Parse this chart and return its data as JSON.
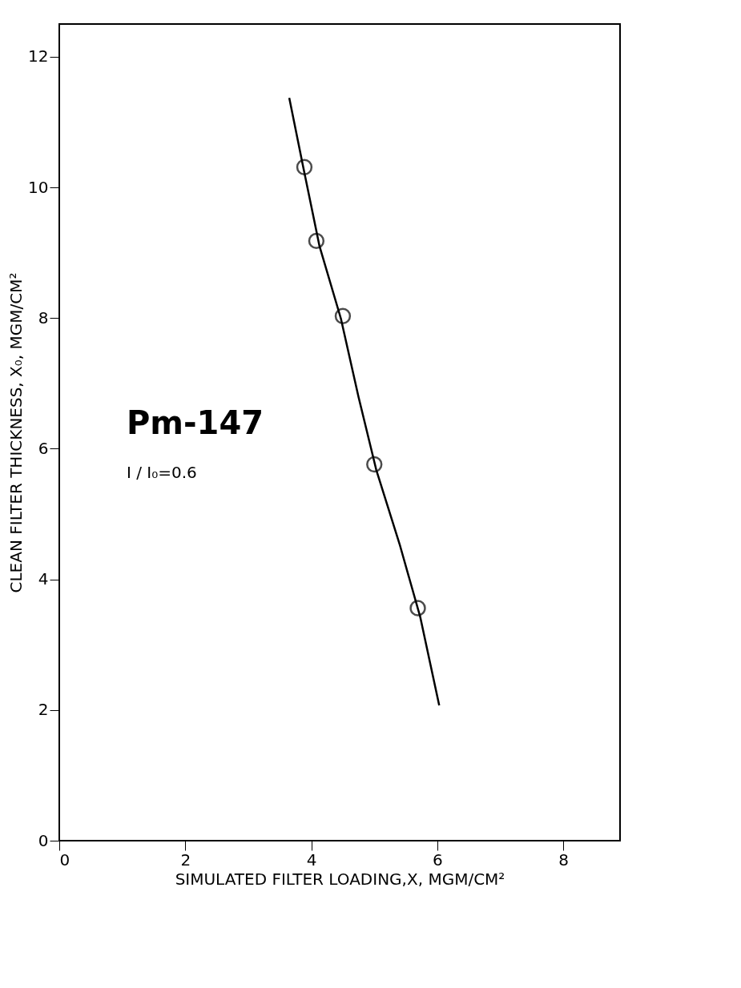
{
  "chart_data": {
    "type": "scatter",
    "xlabel": "SIMULATED FILTER LOADING,X, MGM/CM²",
    "ylabel": "CLEAN FILTER THICKNESS, X₀, MGM/CM²",
    "annotations": [
      "Pm-147",
      "I / I₀=0.6"
    ],
    "xlim": [
      0,
      8.9
    ],
    "xticks": [
      0,
      2,
      4,
      6,
      8
    ],
    "ylim": [
      0,
      12.5
    ],
    "yticks": [
      0,
      2,
      4,
      6,
      8,
      10,
      12
    ],
    "grid": false,
    "marker": "circle",
    "series": [
      {
        "color": "#000000",
        "x": [
          3.89,
          4.08,
          4.5,
          5.0,
          5.69
        ],
        "values": [
          10.31,
          9.18,
          8.03,
          5.76,
          3.56
        ]
      },
      {
        "type": "line",
        "color": "#000000",
        "marker": "none",
        "line_style": "solid",
        "x": [
          3.65,
          3.87,
          4.13,
          4.47,
          4.75,
          5.03,
          5.41,
          5.73,
          6.03
        ],
        "values": [
          11.37,
          10.32,
          9.1,
          7.99,
          6.79,
          5.68,
          4.51,
          3.42,
          2.07
        ]
      }
    ]
  }
}
